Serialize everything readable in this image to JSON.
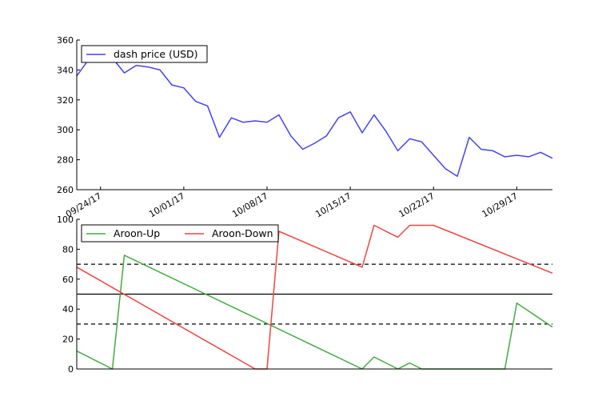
{
  "chart_data": [
    {
      "type": "line",
      "title": "",
      "xlabel": "",
      "ylabel": "",
      "ylim": [
        260,
        360
      ],
      "yticks": [
        260,
        280,
        300,
        320,
        340,
        360
      ],
      "xlim": [
        "2017-09-22",
        "2017-11-01"
      ],
      "xticks": [
        {
          "date": "2017-09-24",
          "label": "09/24/17"
        },
        {
          "date": "2017-10-01",
          "label": "10/01/17"
        },
        {
          "date": "2017-10-08",
          "label": "10/08/17"
        },
        {
          "date": "2017-10-15",
          "label": "10/15/17"
        },
        {
          "date": "2017-10-22",
          "label": "10/22/17"
        },
        {
          "date": "2017-10-29",
          "label": "10/29/17"
        }
      ],
      "legend": "top-left",
      "grid": false,
      "series": [
        {
          "name": "dash price (USD)",
          "color": "#4444ee",
          "x": [
            "2017-09-22",
            "2017-09-23",
            "2017-09-24",
            "2017-09-25",
            "2017-09-26",
            "2017-09-27",
            "2017-09-28",
            "2017-09-29",
            "2017-09-30",
            "2017-10-01",
            "2017-10-02",
            "2017-10-03",
            "2017-10-04",
            "2017-10-05",
            "2017-10-06",
            "2017-10-07",
            "2017-10-08",
            "2017-10-09",
            "2017-10-10",
            "2017-10-11",
            "2017-10-12",
            "2017-10-13",
            "2017-10-14",
            "2017-10-15",
            "2017-10-16",
            "2017-10-17",
            "2017-10-18",
            "2017-10-19",
            "2017-10-20",
            "2017-10-21",
            "2017-10-22",
            "2017-10-23",
            "2017-10-24",
            "2017-10-25",
            "2017-10-26",
            "2017-10-27",
            "2017-10-28",
            "2017-10-29",
            "2017-10-30",
            "2017-10-31",
            "2017-11-01"
          ],
          "y": [
            336,
            347,
            349,
            348,
            338,
            343,
            342,
            340,
            330,
            328,
            319,
            316,
            295,
            308,
            305,
            306,
            305,
            310,
            296,
            287,
            291,
            296,
            308,
            312,
            298,
            310,
            299,
            286,
            294,
            292,
            283,
            274,
            269,
            295,
            287,
            286,
            282,
            283,
            282,
            285,
            281
          ]
        }
      ]
    },
    {
      "type": "line",
      "title": "",
      "xlabel": "",
      "ylabel": "",
      "ylim": [
        0,
        100
      ],
      "yticks": [
        0,
        20,
        40,
        60,
        80,
        100
      ],
      "xlim": [
        "2017-09-22",
        "2017-11-01"
      ],
      "legend": "top-left",
      "grid": false,
      "reference_lines": [
        {
          "y": 70,
          "style": "dashed"
        },
        {
          "y": 50,
          "style": "solid"
        },
        {
          "y": 30,
          "style": "dashed"
        }
      ],
      "series": [
        {
          "name": "Aroon-Up",
          "color": "#44aa44",
          "x": [
            "2017-09-22",
            "2017-09-25",
            "2017-09-26",
            "2017-10-16",
            "2017-10-17",
            "2017-10-19",
            "2017-10-20",
            "2017-10-21",
            "2017-10-28",
            "2017-10-29",
            "2017-11-01"
          ],
          "y": [
            12,
            0,
            76,
            0,
            8,
            0,
            4,
            0,
            0,
            44,
            28
          ]
        },
        {
          "name": "Aroon-Down",
          "color": "#ee4444",
          "x": [
            "2017-09-22",
            "2017-10-07",
            "2017-10-08",
            "2017-10-09",
            "2017-10-16",
            "2017-10-17",
            "2017-10-19",
            "2017-10-20",
            "2017-10-22",
            "2017-11-01"
          ],
          "y": [
            68,
            0,
            0,
            92,
            68,
            96,
            88,
            96,
            96,
            64
          ]
        }
      ]
    }
  ]
}
